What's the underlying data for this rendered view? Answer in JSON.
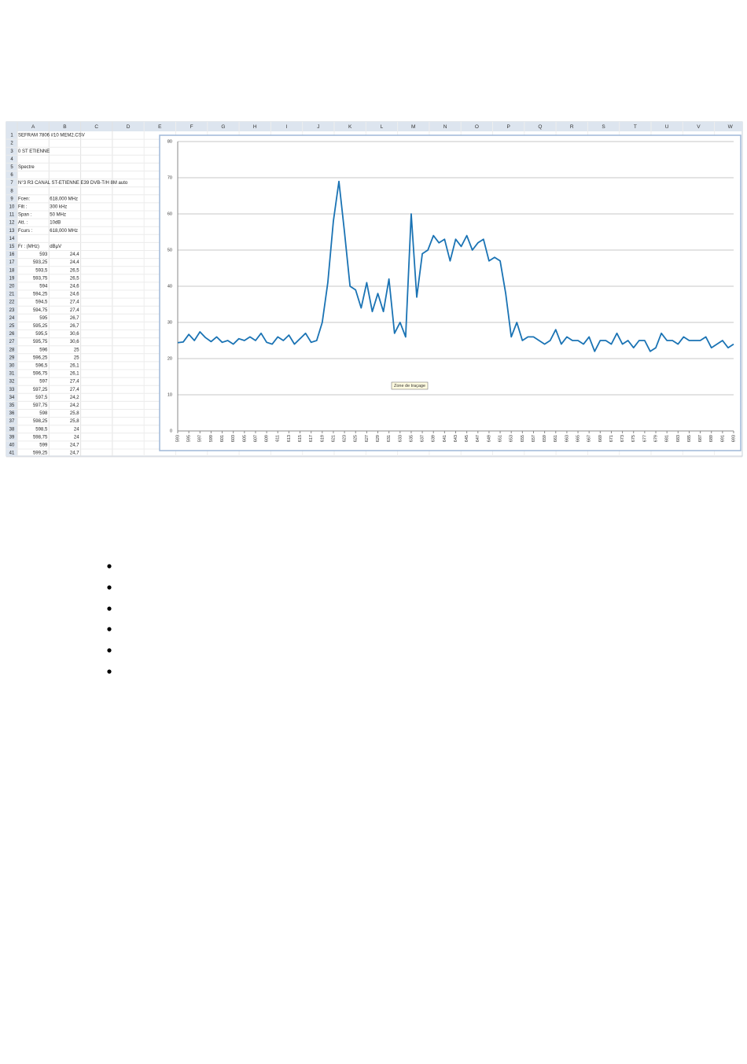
{
  "spreadsheet": {
    "columns": [
      "A",
      "B",
      "C",
      "D",
      "E",
      "F",
      "G",
      "H",
      "I",
      "J",
      "K",
      "L",
      "M",
      "N",
      "O",
      "P",
      "Q",
      "R",
      "S",
      "T",
      "U",
      "V",
      "W"
    ],
    "rows": [
      {
        "n": 1,
        "a": "SEFRAM 7806 #10 MEM2.CSV"
      },
      {
        "n": 2
      },
      {
        "n": 3,
        "a": "0  ST ETIENNE"
      },
      {
        "n": 4
      },
      {
        "n": 5,
        "a": "Spectre"
      },
      {
        "n": 6
      },
      {
        "n": 7,
        "a": "N°3 R3 CANAL ST-ETIENNE E39 DVB-T/H 8M auto"
      },
      {
        "n": 8
      },
      {
        "n": 9,
        "a": "Fcen:",
        "b": "618,000 MHz"
      },
      {
        "n": 10,
        "a": "Filt :",
        "b": "300 kHz"
      },
      {
        "n": 11,
        "a": "Span :",
        "b": "50 MHz"
      },
      {
        "n": 12,
        "a": "Att. :",
        "b": "10dB"
      },
      {
        "n": 13,
        "a": "Fcurs :",
        "b": "618,000 MHz"
      },
      {
        "n": 14
      },
      {
        "n": 15,
        "a": "Fr : (MHz)",
        "b": "dBµV"
      },
      {
        "n": 16,
        "a": "593",
        "b": "24,4"
      },
      {
        "n": 17,
        "a": "593,25",
        "b": "24,4"
      },
      {
        "n": 18,
        "a": "593,5",
        "b": "26,5"
      },
      {
        "n": 19,
        "a": "593,75",
        "b": "26,5"
      },
      {
        "n": 20,
        "a": "594",
        "b": "24,6"
      },
      {
        "n": 21,
        "a": "594,25",
        "b": "24,6"
      },
      {
        "n": 22,
        "a": "594,5",
        "b": "27,4"
      },
      {
        "n": 23,
        "a": "594,75",
        "b": "27,4"
      },
      {
        "n": 24,
        "a": "595",
        "b": "26,7"
      },
      {
        "n": 25,
        "a": "595,25",
        "b": "26,7"
      },
      {
        "n": 26,
        "a": "595,5",
        "b": "30,6"
      },
      {
        "n": 27,
        "a": "595,75",
        "b": "30,6"
      },
      {
        "n": 28,
        "a": "596",
        "b": "25"
      },
      {
        "n": 29,
        "a": "596,25",
        "b": "25"
      },
      {
        "n": 30,
        "a": "596,5",
        "b": "26,1"
      },
      {
        "n": 31,
        "a": "596,75",
        "b": "26,1"
      },
      {
        "n": 32,
        "a": "597",
        "b": "27,4"
      },
      {
        "n": 33,
        "a": "597,25",
        "b": "27,4"
      },
      {
        "n": 34,
        "a": "597,5",
        "b": "24,2"
      },
      {
        "n": 35,
        "a": "597,75",
        "b": "24,2"
      },
      {
        "n": 36,
        "a": "598",
        "b": "25,8"
      },
      {
        "n": 37,
        "a": "598,25",
        "b": "25,8"
      },
      {
        "n": 38,
        "a": "598,5",
        "b": "24"
      },
      {
        "n": 39,
        "a": "598,75",
        "b": "24"
      },
      {
        "n": 40,
        "a": "599",
        "b": "24,7"
      },
      {
        "n": 41,
        "a": "599,25",
        "b": "24,7"
      }
    ]
  },
  "chart_data": {
    "type": "line",
    "color": "#1a73b4",
    "grid": true,
    "annotation": "Zone de traçage",
    "x": [
      593,
      594,
      595,
      596,
      597,
      598,
      599,
      600,
      601,
      602,
      603,
      604,
      605,
      606,
      607,
      608,
      609,
      610,
      611,
      612,
      613,
      614,
      615,
      616,
      617,
      618,
      619,
      620,
      621,
      622,
      623,
      624,
      625,
      626,
      627,
      628,
      629,
      630,
      631,
      632,
      633,
      634,
      635,
      636,
      637,
      638,
      639,
      640,
      641,
      642,
      643,
      644,
      645,
      646,
      647,
      648,
      649,
      650,
      651,
      652,
      653,
      654,
      655,
      656,
      657,
      658,
      659,
      660,
      661,
      662,
      663,
      664,
      665,
      666,
      667,
      668,
      669,
      670,
      671,
      672,
      673,
      674,
      675,
      676,
      677,
      678,
      679,
      680,
      681,
      682,
      683,
      684,
      685,
      686,
      687,
      688,
      689,
      690,
      691,
      692,
      693
    ],
    "values": [
      24.4,
      24.6,
      26.7,
      25,
      27.4,
      25.8,
      24.7,
      26,
      24.5,
      25,
      24,
      25.5,
      25,
      26,
      25,
      27,
      24.5,
      24,
      26,
      25,
      26.5,
      24,
      25.5,
      27,
      24.5,
      25,
      30,
      41,
      58,
      69,
      55,
      40,
      39,
      34,
      41,
      33,
      38,
      33,
      42,
      27,
      30,
      26,
      60,
      37,
      49,
      50,
      54,
      52,
      53,
      47,
      53,
      51,
      54,
      50,
      52,
      53,
      47,
      48,
      47,
      38,
      26,
      30,
      25,
      26,
      26,
      25,
      24,
      25,
      28,
      24,
      26,
      25,
      25,
      24,
      26,
      22,
      25,
      25,
      24,
      27,
      24,
      25,
      23,
      25,
      25,
      22,
      23,
      27,
      25,
      25,
      24,
      26,
      25,
      25,
      25,
      26,
      23,
      24,
      25,
      23,
      24
    ],
    "xlim": [
      593,
      693
    ],
    "xticks": [
      593,
      595,
      597,
      599,
      601,
      603,
      605,
      607,
      609,
      611,
      613,
      615,
      617,
      619,
      621,
      623,
      625,
      627,
      629,
      631,
      633,
      635,
      637,
      639,
      641,
      643,
      645,
      647,
      649,
      651,
      653,
      655,
      657,
      659,
      661,
      663,
      665,
      667,
      669,
      671,
      673,
      675,
      677,
      679,
      681,
      683,
      685,
      687,
      689,
      691,
      693
    ],
    "ylim": [
      0,
      80
    ],
    "yticks": [
      0,
      10,
      20,
      30,
      40,
      50,
      60,
      70,
      80
    ]
  }
}
